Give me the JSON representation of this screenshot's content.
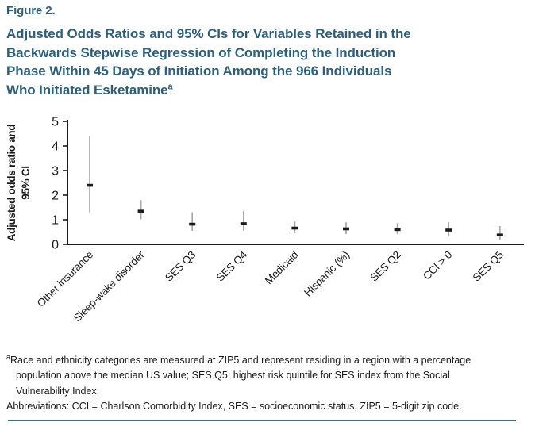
{
  "figure": {
    "label": "Figure 2.",
    "title_lines": [
      "Adjusted Odds Ratios and 95% CIs for Variables Retained in the",
      "Backwards Stepwise Regression of Completing the Induction",
      "Phase Within 45 Days of Initiation Among the 966 Individuals",
      "Who Initiated Esketamine"
    ],
    "title_superscript": "a"
  },
  "chart_data": {
    "type": "scatter",
    "subtype": "point_estimates_with_95ci_error_bars",
    "title": "",
    "xlabel": "",
    "ylabel": "Adjusted odds ratio and 95% CI",
    "ylabel_lines": [
      "Adjusted odds ratio and",
      "95% CI"
    ],
    "ylim": [
      0,
      5
    ],
    "yticks": [
      0,
      1,
      2,
      3,
      4,
      5
    ],
    "grid": false,
    "legend": false,
    "categories": [
      "Other insurance",
      "Sleep-wake disorder",
      "SES Q3",
      "SES Q4",
      "Medicaid",
      "Hispanic (%)",
      "SES Q2",
      "CCI > 0",
      "SES Q5"
    ],
    "series": [
      {
        "name": "Adjusted odds ratio (95% CI)",
        "values": [
          2.4,
          1.35,
          0.82,
          0.84,
          0.66,
          0.63,
          0.6,
          0.58,
          0.38
        ],
        "ci_low": [
          1.3,
          1.02,
          0.55,
          0.56,
          0.45,
          0.42,
          0.41,
          0.33,
          0.18
        ],
        "ci_high": [
          4.4,
          1.8,
          1.3,
          1.35,
          0.93,
          0.9,
          0.86,
          0.9,
          0.74
        ]
      }
    ],
    "marker_color": "#1a1a1a",
    "errorbar_color": "#a9a9a9",
    "axis_color": "#1a1a1a"
  },
  "footnotes": {
    "note_a_marker": "a",
    "note_a_lines": [
      "Race and ethnicity categories are measured at ZIP5 and represent residing in a region with a percentage",
      "population above the median US value; SES Q5: highest risk quintile for SES index from the Social",
      "Vulnerability Index."
    ],
    "abbreviations": "Abbreviations: CCI = Charlson Comorbidity Index, SES = socioeconomic status, ZIP5 = 5-digit zip code."
  },
  "colors": {
    "title_teal": "#2e5f7a",
    "rule_teal": "#3f7089",
    "text_black": "#1a1a1a",
    "errorbar_gray": "#a9a9a9"
  }
}
